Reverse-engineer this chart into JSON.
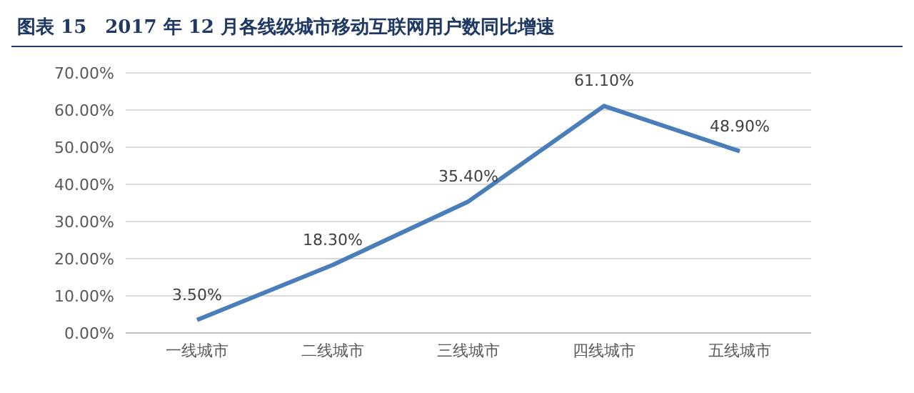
{
  "chart_data": {
    "type": "line",
    "title": "图表 15　2017 年 12 月各线级城市移动互联网用户数同比增速",
    "categories": [
      "一线城市",
      "二线城市",
      "三线城市",
      "四线城市",
      "五线城市"
    ],
    "series": [
      {
        "color": "#4a7ebb",
        "values": [
          3.5,
          18.3,
          35.4,
          61.1,
          48.9
        ],
        "value_labels": [
          "3.50%",
          "18.30%",
          "35.40%",
          "61.10%",
          "48.90%"
        ]
      }
    ],
    "ylim": [
      0,
      70
    ],
    "yticks": [
      {
        "value": 0,
        "label": "0.00%"
      },
      {
        "value": 10,
        "label": "10.00%"
      },
      {
        "value": 20,
        "label": "20.00%"
      },
      {
        "value": 30,
        "label": "30.00%"
      },
      {
        "value": 40,
        "label": "40.00%"
      },
      {
        "value": 50,
        "label": "50.00%"
      },
      {
        "value": 60,
        "label": "60.00%"
      },
      {
        "value": 70,
        "label": "70.00%"
      }
    ],
    "grid": "y",
    "legend": false,
    "marker": "none",
    "line_style": "solid"
  }
}
